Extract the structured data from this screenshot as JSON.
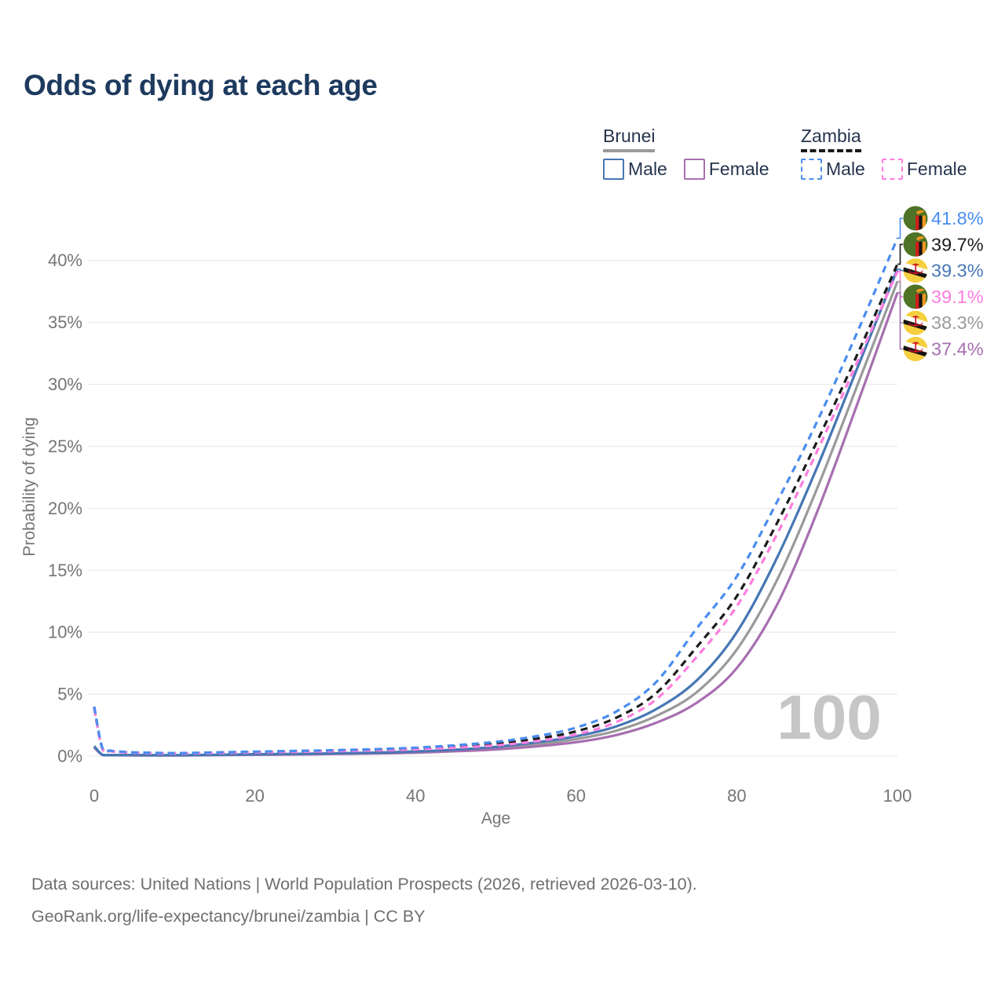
{
  "title": "Odds of dying at each age",
  "legend": {
    "groups": [
      {
        "label": "Brunei",
        "line_style": "solid",
        "total_color": "#9a9a9a",
        "items": [
          {
            "label": "Male",
            "color": "#4677b4"
          },
          {
            "label": "Female",
            "color": "#a76fb0"
          }
        ]
      },
      {
        "label": "Zambia",
        "line_style": "dashed",
        "total_color": "#1a1a1a",
        "items": [
          {
            "label": "Male",
            "color": "#4a8df0"
          },
          {
            "label": "Female",
            "color": "#ff7ddf"
          }
        ]
      }
    ]
  },
  "chart_data": {
    "type": "line",
    "title": "Odds of dying at each age",
    "xlabel": "Age",
    "ylabel": "Probability of dying",
    "x_ticks": [
      0,
      20,
      40,
      60,
      80,
      100
    ],
    "y_ticks": [
      "0%",
      "5%",
      "10%",
      "15%",
      "20%",
      "25%",
      "30%",
      "35%",
      "40%"
    ],
    "xlim": [
      0,
      100
    ],
    "ylim_pct": [
      0,
      44
    ],
    "grid": "horizontal",
    "legend_position": "top-right",
    "watermark_age_counter": "100",
    "ages": [
      0,
      1,
      2,
      3,
      4,
      5,
      10,
      15,
      20,
      25,
      30,
      35,
      40,
      45,
      50,
      55,
      60,
      65,
      70,
      75,
      80,
      85,
      90,
      95,
      100
    ],
    "series": [
      {
        "name": "Zambia Male",
        "country": "Zambia",
        "sex": "Male",
        "style": "dashed",
        "color": "#4a8df0",
        "flag": "zambia",
        "end_label": "41.8%",
        "values_pct": [
          4.0,
          0.7,
          0.45,
          0.38,
          0.33,
          0.3,
          0.25,
          0.3,
          0.36,
          0.42,
          0.48,
          0.56,
          0.68,
          0.88,
          1.15,
          1.6,
          2.3,
          3.6,
          6.0,
          10.3,
          14.5,
          20.5,
          27.0,
          34.2,
          41.8
        ]
      },
      {
        "name": "Zambia Both sexes",
        "country": "Zambia",
        "sex": "Both",
        "style": "dashed",
        "color": "#1c1c1c",
        "flag": "zambia",
        "end_label": "39.7%",
        "values_pct": [
          3.9,
          0.65,
          0.42,
          0.35,
          0.31,
          0.28,
          0.23,
          0.27,
          0.33,
          0.38,
          0.44,
          0.51,
          0.61,
          0.78,
          1.0,
          1.4,
          2.0,
          3.1,
          5.1,
          8.8,
          12.9,
          18.8,
          25.4,
          32.4,
          39.7
        ]
      },
      {
        "name": "Brunei Male",
        "country": "Brunei",
        "sex": "Male",
        "style": "solid",
        "color": "#4677b4",
        "flag": "brunei",
        "end_label": "39.3%",
        "values_pct": [
          0.8,
          0.12,
          0.09,
          0.08,
          0.08,
          0.08,
          0.07,
          0.1,
          0.15,
          0.18,
          0.22,
          0.28,
          0.38,
          0.52,
          0.75,
          1.1,
          1.6,
          2.4,
          3.8,
          6.1,
          10.0,
          16.0,
          23.3,
          31.3,
          39.3
        ]
      },
      {
        "name": "Zambia Female",
        "country": "Zambia",
        "sex": "Female",
        "style": "dashed",
        "color": "#ff7ddf",
        "flag": "zambia",
        "end_label": "39.1%",
        "values_pct": [
          3.8,
          0.6,
          0.4,
          0.33,
          0.29,
          0.26,
          0.21,
          0.25,
          0.3,
          0.34,
          0.4,
          0.46,
          0.54,
          0.68,
          0.87,
          1.2,
          1.75,
          2.75,
          4.6,
          8.0,
          12.1,
          17.9,
          24.6,
          31.8,
          39.1
        ]
      },
      {
        "name": "Brunei Both sexes",
        "country": "Brunei",
        "sex": "Both",
        "style": "solid",
        "color": "#9a9a9a",
        "flag": "brunei",
        "end_label": "38.3%",
        "values_pct": [
          0.75,
          0.11,
          0.085,
          0.075,
          0.072,
          0.07,
          0.065,
          0.09,
          0.13,
          0.16,
          0.2,
          0.25,
          0.33,
          0.45,
          0.64,
          0.93,
          1.37,
          2.05,
          3.25,
          5.15,
          8.6,
          14.2,
          21.6,
          29.9,
          38.3
        ]
      },
      {
        "name": "Brunei Female",
        "country": "Brunei",
        "sex": "Female",
        "style": "solid",
        "color": "#a76fb0",
        "flag": "brunei",
        "end_label": "37.4%",
        "values_pct": [
          0.7,
          0.1,
          0.08,
          0.07,
          0.065,
          0.06,
          0.055,
          0.08,
          0.11,
          0.13,
          0.17,
          0.21,
          0.28,
          0.39,
          0.54,
          0.78,
          1.12,
          1.7,
          2.7,
          4.3,
          7.1,
          12.2,
          19.7,
          28.4,
          37.4
        ]
      }
    ]
  },
  "footer": {
    "line1": "Data sources: United Nations | World Population Prospects (2026, retrieved 2026-03-10).",
    "line2": "GeoRank.org/life-expectancy/brunei/zambia | CC BY"
  },
  "colors": {
    "title": "#1d3a5e",
    "axis_text": "#757575",
    "grid": "#ebebeb",
    "watermark": "#c6c6c6",
    "footer_text": "#6f6f6f"
  }
}
